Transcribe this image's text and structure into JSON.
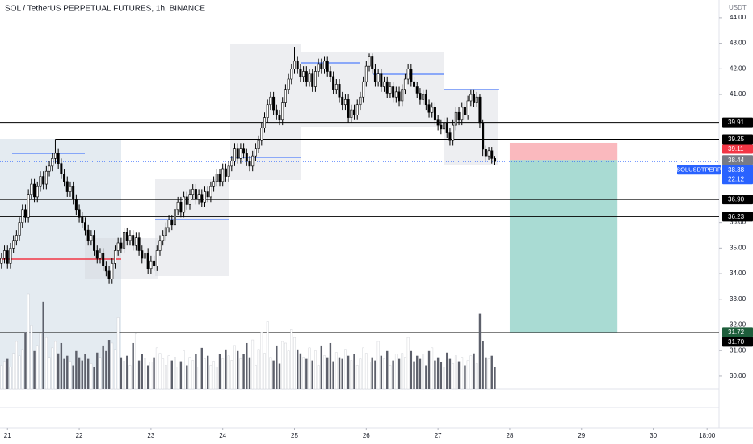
{
  "chart_data": {
    "type": "candlestick",
    "title": "SOL / TetherUS PERPETUAL FUTURES, 1h, BINANCE",
    "currency": "USDT",
    "xlim": [
      -0.5,
      240
    ],
    "ylim": [
      27.98,
      44.69
    ],
    "yticks": [
      {
        "value": 30,
        "label": "30.00"
      },
      {
        "value": 31,
        "label": "31.00"
      },
      {
        "value": 32,
        "label": "32.00"
      },
      {
        "value": 33,
        "label": "33.00"
      },
      {
        "value": 34,
        "label": "34.00"
      },
      {
        "value": 35,
        "label": "35.00"
      },
      {
        "value": 36,
        "label": "36.00"
      },
      {
        "value": 41,
        "label": "41.00"
      },
      {
        "value": 42,
        "label": "42.00"
      },
      {
        "value": 43,
        "label": "43.00"
      },
      {
        "value": 44,
        "label": "44.00"
      }
    ],
    "xticks": [
      {
        "value": 2,
        "label": "21"
      },
      {
        "value": 26,
        "label": "22"
      },
      {
        "value": 50,
        "label": "23"
      },
      {
        "value": 74,
        "label": "24"
      },
      {
        "value": 98,
        "label": "25"
      },
      {
        "value": 122,
        "label": "26"
      },
      {
        "value": 146,
        "label": "27"
      },
      {
        "value": 170,
        "label": "28"
      },
      {
        "value": 194,
        "label": "29"
      },
      {
        "value": 218,
        "label": "30"
      },
      {
        "value": 236,
        "label": "18:00"
      }
    ],
    "up_color": "#ffffff",
    "down_color": "#000000",
    "volume_up_color": "#ffffff",
    "volume_down_color": "#5d606b",
    "candles": [
      [
        34.4,
        34.8,
        34.2,
        34.6
      ],
      [
        34.6,
        35.1,
        34.4,
        34.9
      ],
      [
        34.9,
        35.1,
        34.2,
        34.4
      ],
      [
        34.4,
        35.2,
        34.2,
        35.0
      ],
      [
        35.0,
        35.5,
        34.8,
        35.3
      ],
      [
        35.3,
        35.7,
        35.1,
        35.5
      ],
      [
        35.5,
        36.2,
        35.3,
        36.0
      ],
      [
        36.0,
        36.7,
        35.8,
        36.5
      ],
      [
        36.5,
        36.7,
        36.0,
        36.2
      ],
      [
        36.2,
        37.3,
        36.0,
        37.1
      ],
      [
        37.1,
        37.7,
        36.9,
        37.5
      ],
      [
        37.5,
        37.7,
        36.8,
        37.0
      ],
      [
        37.0,
        37.6,
        36.8,
        37.4
      ],
      [
        37.4,
        38.0,
        37.2,
        37.8
      ],
      [
        37.8,
        38.0,
        37.3,
        37.5
      ],
      [
        37.5,
        38.2,
        37.3,
        38.0
      ],
      [
        38.0,
        38.4,
        37.8,
        38.2
      ],
      [
        38.2,
        38.7,
        38.0,
        38.5
      ],
      [
        38.5,
        39.25,
        38.3,
        38.7
      ],
      [
        38.7,
        38.9,
        38.1,
        38.3
      ],
      [
        38.3,
        38.5,
        37.7,
        37.9
      ],
      [
        37.9,
        38.1,
        37.4,
        37.6
      ],
      [
        37.6,
        37.8,
        37.0,
        37.2
      ],
      [
        37.2,
        37.6,
        37.0,
        37.4
      ],
      [
        37.4,
        37.6,
        36.7,
        36.9
      ],
      [
        36.9,
        37.1,
        36.3,
        36.5
      ],
      [
        36.5,
        36.7,
        36.0,
        36.2
      ],
      [
        36.2,
        36.4,
        35.8,
        36.0
      ],
      [
        36.0,
        36.2,
        35.5,
        35.7
      ],
      [
        35.7,
        35.9,
        35.1,
        35.3
      ],
      [
        35.3,
        35.7,
        35.1,
        35.5
      ],
      [
        35.5,
        35.7,
        34.7,
        34.9
      ],
      [
        34.9,
        35.1,
        34.4,
        34.6
      ],
      [
        34.6,
        35.0,
        34.4,
        34.8
      ],
      [
        34.8,
        35.0,
        34.1,
        34.3
      ],
      [
        34.3,
        34.5,
        33.9,
        34.1
      ],
      [
        34.1,
        34.3,
        33.6,
        33.8
      ],
      [
        33.8,
        34.6,
        33.6,
        34.4
      ],
      [
        34.4,
        35.1,
        34.2,
        34.9
      ],
      [
        34.9,
        35.4,
        34.7,
        35.2
      ],
      [
        35.2,
        35.4,
        34.8,
        35.0
      ],
      [
        35.0,
        35.8,
        34.8,
        35.6
      ],
      [
        35.6,
        35.8,
        35.1,
        35.3
      ],
      [
        35.3,
        35.7,
        35.1,
        35.5
      ],
      [
        35.5,
        35.7,
        34.9,
        35.1
      ],
      [
        35.1,
        35.6,
        34.9,
        35.4
      ],
      [
        35.4,
        35.6,
        34.7,
        34.9
      ],
      [
        34.9,
        35.1,
        34.4,
        34.6
      ],
      [
        34.6,
        35.0,
        34.4,
        34.8
      ],
      [
        34.8,
        35.0,
        34.0,
        34.2
      ],
      [
        34.2,
        34.7,
        34.0,
        34.5
      ],
      [
        34.5,
        34.7,
        34.1,
        34.3
      ],
      [
        34.3,
        35.1,
        34.1,
        34.9
      ],
      [
        34.9,
        35.5,
        34.7,
        35.3
      ],
      [
        35.3,
        35.7,
        35.1,
        35.5
      ],
      [
        35.5,
        36.0,
        35.3,
        35.8
      ],
      [
        35.8,
        36.3,
        35.6,
        36.1
      ],
      [
        36.1,
        36.3,
        35.7,
        35.9
      ],
      [
        35.9,
        36.7,
        35.7,
        36.5
      ],
      [
        36.5,
        37.0,
        36.3,
        36.8
      ],
      [
        36.8,
        37.0,
        36.2,
        36.4
      ],
      [
        36.4,
        37.2,
        36.2,
        37.0
      ],
      [
        37.0,
        37.2,
        36.5,
        36.7
      ],
      [
        36.7,
        37.3,
        36.5,
        37.1
      ],
      [
        37.1,
        37.5,
        36.9,
        37.3
      ],
      [
        37.3,
        37.5,
        36.7,
        36.9
      ],
      [
        36.9,
        37.3,
        36.7,
        37.1
      ],
      [
        37.1,
        37.3,
        36.6,
        36.8
      ],
      [
        36.8,
        37.4,
        36.6,
        37.2
      ],
      [
        37.2,
        37.4,
        36.8,
        37.0
      ],
      [
        37.0,
        37.6,
        36.8,
        37.4
      ],
      [
        37.4,
        37.8,
        37.2,
        37.6
      ],
      [
        37.6,
        38.1,
        37.4,
        37.9
      ],
      [
        37.9,
        38.1,
        37.4,
        37.6
      ],
      [
        37.6,
        38.3,
        37.4,
        38.1
      ],
      [
        38.1,
        38.3,
        37.6,
        37.8
      ],
      [
        37.8,
        38.4,
        37.6,
        38.2
      ],
      [
        38.2,
        38.6,
        38.0,
        38.4
      ],
      [
        38.4,
        39.1,
        38.2,
        38.9
      ],
      [
        38.9,
        39.1,
        38.3,
        38.5
      ],
      [
        38.5,
        39.1,
        38.3,
        38.9
      ],
      [
        38.9,
        39.1,
        38.5,
        38.7
      ],
      [
        38.7,
        38.9,
        38.2,
        38.4
      ],
      [
        38.4,
        38.6,
        38.0,
        38.2
      ],
      [
        38.2,
        38.8,
        38.0,
        38.6
      ],
      [
        38.6,
        39.1,
        38.4,
        38.9
      ],
      [
        38.9,
        39.4,
        38.7,
        39.2
      ],
      [
        39.2,
        39.9,
        39.0,
        39.7
      ],
      [
        39.7,
        40.3,
        39.5,
        40.1
      ],
      [
        40.1,
        40.8,
        39.9,
        40.6
      ],
      [
        40.6,
        41.1,
        40.4,
        40.9
      ],
      [
        40.9,
        41.1,
        40.2,
        40.4
      ],
      [
        40.4,
        40.6,
        40.0,
        40.2
      ],
      [
        40.2,
        40.4,
        39.8,
        40.0
      ],
      [
        40.0,
        40.9,
        39.8,
        40.7
      ],
      [
        40.7,
        41.4,
        40.5,
        41.2
      ],
      [
        41.2,
        41.8,
        41.0,
        41.6
      ],
      [
        41.6,
        42.2,
        41.4,
        42.0
      ],
      [
        42.0,
        42.86,
        41.8,
        42.3
      ],
      [
        42.3,
        42.5,
        41.8,
        42.0
      ],
      [
        42.0,
        42.2,
        41.5,
        41.7
      ],
      [
        41.7,
        42.1,
        41.5,
        41.9
      ],
      [
        41.9,
        42.1,
        41.3,
        41.5
      ],
      [
        41.5,
        42.0,
        41.3,
        41.8
      ],
      [
        41.8,
        42.0,
        41.1,
        41.3
      ],
      [
        41.3,
        42.1,
        41.1,
        41.9
      ],
      [
        41.9,
        42.4,
        41.7,
        42.2
      ],
      [
        42.2,
        42.4,
        41.8,
        42.0
      ],
      [
        42.0,
        42.5,
        41.8,
        42.3
      ],
      [
        42.3,
        42.5,
        41.7,
        41.9
      ],
      [
        41.9,
        42.1,
        41.5,
        41.7
      ],
      [
        41.7,
        41.9,
        41.0,
        41.2
      ],
      [
        41.2,
        41.6,
        41.0,
        41.4
      ],
      [
        41.4,
        41.6,
        40.7,
        40.9
      ],
      [
        40.9,
        41.1,
        40.4,
        40.6
      ],
      [
        40.6,
        41.0,
        40.4,
        40.8
      ],
      [
        40.8,
        41.0,
        39.9,
        40.1
      ],
      [
        40.1,
        40.6,
        39.9,
        40.4
      ],
      [
        40.4,
        40.6,
        40.0,
        40.2
      ],
      [
        40.2,
        40.8,
        40.0,
        40.6
      ],
      [
        40.6,
        41.1,
        40.4,
        40.9
      ],
      [
        40.9,
        41.7,
        40.7,
        41.5
      ],
      [
        41.5,
        42.3,
        41.3,
        42.1
      ],
      [
        42.1,
        42.6,
        41.9,
        42.5
      ],
      [
        42.5,
        42.6,
        41.8,
        42.0
      ],
      [
        42.0,
        42.2,
        41.3,
        41.5
      ],
      [
        41.5,
        42.0,
        41.3,
        41.8
      ],
      [
        41.8,
        42.0,
        41.1,
        41.3
      ],
      [
        41.3,
        41.7,
        41.1,
        41.5
      ],
      [
        41.5,
        41.7,
        40.85,
        41.05
      ],
      [
        41.05,
        41.5,
        40.85,
        41.3
      ],
      [
        41.3,
        41.5,
        40.7,
        40.9
      ],
      [
        40.9,
        41.3,
        40.7,
        41.1
      ],
      [
        41.1,
        41.3,
        40.55,
        40.75
      ],
      [
        40.75,
        41.4,
        40.55,
        41.2
      ],
      [
        41.2,
        41.8,
        41.0,
        41.6
      ],
      [
        41.6,
        42.2,
        41.4,
        42.0
      ],
      [
        42.0,
        42.2,
        41.3,
        41.5
      ],
      [
        41.5,
        41.7,
        41.1,
        41.3
      ],
      [
        41.3,
        41.5,
        40.85,
        41.05
      ],
      [
        41.05,
        41.25,
        40.6,
        40.8
      ],
      [
        40.8,
        41.2,
        40.6,
        41.0
      ],
      [
        41.0,
        41.2,
        40.4,
        40.6
      ],
      [
        40.6,
        40.8,
        40.1,
        40.3
      ],
      [
        40.3,
        40.7,
        40.1,
        40.5
      ],
      [
        40.5,
        40.7,
        39.8,
        40.0
      ],
      [
        40.0,
        40.2,
        39.6,
        39.8
      ],
      [
        39.8,
        40.0,
        39.45,
        39.65
      ],
      [
        39.65,
        40.1,
        39.45,
        39.9
      ],
      [
        39.9,
        40.1,
        39.3,
        39.5
      ],
      [
        39.5,
        39.7,
        39.0,
        39.2
      ],
      [
        39.2,
        40.0,
        39.0,
        39.8
      ],
      [
        39.8,
        40.5,
        39.6,
        40.3
      ],
      [
        40.3,
        40.5,
        39.8,
        40.0
      ],
      [
        40.0,
        40.7,
        39.8,
        40.5
      ],
      [
        40.5,
        40.7,
        40.0,
        40.2
      ],
      [
        40.2,
        40.95,
        40.0,
        40.75
      ],
      [
        40.75,
        41.2,
        40.55,
        41.0
      ],
      [
        41.0,
        41.2,
        40.5,
        40.7
      ],
      [
        40.7,
        41.1,
        40.5,
        40.9
      ],
      [
        40.9,
        41.0,
        39.7,
        39.9
      ],
      [
        39.9,
        40.0,
        38.6,
        38.86
      ],
      [
        38.86,
        39.0,
        38.4,
        38.6
      ],
      [
        38.6,
        38.95,
        38.45,
        38.8
      ],
      [
        38.8,
        38.95,
        38.3,
        38.5
      ],
      [
        38.5,
        38.6,
        38.25,
        38.38
      ]
    ],
    "volume": [
      30,
      35,
      38,
      28,
      45,
      60,
      42,
      50,
      72,
      120,
      80,
      48,
      55,
      70,
      110,
      65,
      40,
      52,
      60,
      45,
      58,
      38,
      42,
      35,
      30,
      48,
      40,
      36,
      44,
      38,
      32,
      28,
      46,
      40,
      55,
      48,
      62,
      58,
      50,
      90,
      40,
      35,
      42,
      30,
      58,
      70,
      36,
      44,
      38,
      30,
      34,
      40,
      52,
      45,
      38,
      30,
      42,
      36,
      40,
      28,
      35,
      48,
      30,
      40,
      36,
      44,
      28,
      52,
      38,
      42,
      30,
      35,
      28,
      44,
      38,
      50,
      42,
      36,
      55,
      48,
      38,
      44,
      58,
      40,
      62,
      30,
      50,
      72,
      45,
      85,
      40,
      36,
      55,
      32,
      60,
      58,
      48,
      75,
      65,
      50,
      45,
      40,
      38,
      52,
      36,
      48,
      30,
      55,
      42,
      40,
      58,
      35,
      46,
      40,
      38,
      50,
      42,
      36,
      44,
      30,
      38,
      52,
      45,
      34,
      40,
      36,
      60,
      42,
      38,
      48,
      30,
      36,
      44,
      38,
      45,
      40,
      65,
      48,
      35,
      42,
      38,
      44,
      30,
      48,
      52,
      36,
      40,
      34,
      28,
      46,
      38,
      32,
      42,
      35,
      40,
      30,
      36,
      42,
      45,
      32,
      95,
      60,
      40,
      38,
      42,
      28
    ],
    "levels": [
      {
        "value": 39.91,
        "label": "39.91",
        "from": -0.5,
        "color": "#000000"
      },
      {
        "value": 39.25,
        "label": "39.25",
        "from": 18,
        "color": "#000000"
      },
      {
        "value": 36.9,
        "label": "36.90",
        "from": -0.5,
        "color": "#000000"
      },
      {
        "value": 36.23,
        "label": "36.23",
        "from": -0.5,
        "color": "#000000"
      },
      {
        "value": 31.7,
        "label": "31.70",
        "from": -0.5,
        "color": "#000000"
      }
    ],
    "position": {
      "start": 170,
      "end": 206,
      "entry": {
        "value": 38.44,
        "label": "38.44"
      },
      "stop": {
        "value": 39.11,
        "label": "39.11"
      },
      "target": {
        "value": 31.72,
        "label": "31.72"
      },
      "stop_color": "#f23645",
      "target_color": "#089981",
      "entry_color": "#787b86"
    },
    "last_price": {
      "value": 38.38,
      "label": "38.38",
      "symbol": "SOLUSDTPERP",
      "countdown": "22:12",
      "color": "#2962ff"
    }
  }
}
